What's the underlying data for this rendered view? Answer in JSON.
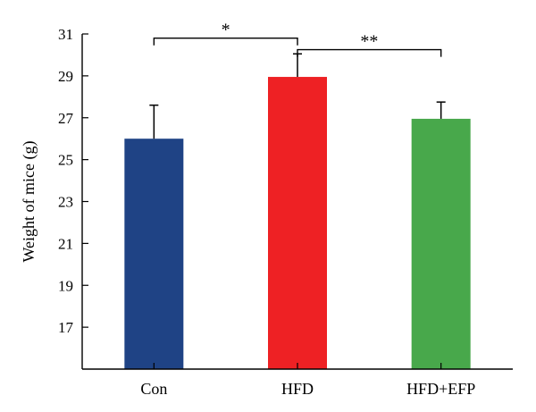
{
  "chart_data": {
    "type": "bar",
    "categories": [
      "Con",
      "HFD",
      "HFD+EFP"
    ],
    "values": [
      26.0,
      28.95,
      26.95
    ],
    "errors": [
      1.6,
      1.1,
      0.8
    ],
    "colors": [
      "#1f4385",
      "#ee2124",
      "#48a84b"
    ],
    "ylabel": "Weight of mice (g)",
    "xlabel": "",
    "ylim": [
      15,
      31
    ],
    "yticks": [
      17,
      19,
      21,
      23,
      25,
      27,
      29,
      31
    ],
    "grid": false,
    "annotations": [
      {
        "from": "Con",
        "to": "HFD",
        "label": "*"
      },
      {
        "from": "HFD",
        "to": "HFD+EFP",
        "label": "**"
      }
    ]
  }
}
